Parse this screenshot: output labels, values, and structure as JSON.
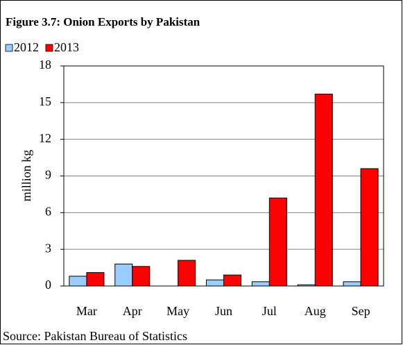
{
  "chart_data": {
    "type": "bar",
    "title": "Figure 3.7: Onion Exports by Pakistan",
    "ylabel": "million kg",
    "source": "Source: Pakistan Bureau of Statistics",
    "categories": [
      "Mar",
      "Apr",
      "May",
      "Jun",
      "Jul",
      "Aug",
      "Sep"
    ],
    "series": [
      {
        "name": "2012",
        "color": "#99ccff",
        "values": [
          0.8,
          1.8,
          0,
          0.5,
          0.35,
          0.1,
          0.35
        ]
      },
      {
        "name": "2013",
        "color": "#ff0000",
        "values": [
          1.1,
          1.6,
          2.1,
          0.9,
          7.2,
          15.7,
          9.6
        ]
      }
    ],
    "ylim": [
      0,
      18
    ],
    "yticks": [
      0,
      3,
      6,
      9,
      12,
      15,
      18
    ],
    "grid": true,
    "legend": "top-left"
  }
}
